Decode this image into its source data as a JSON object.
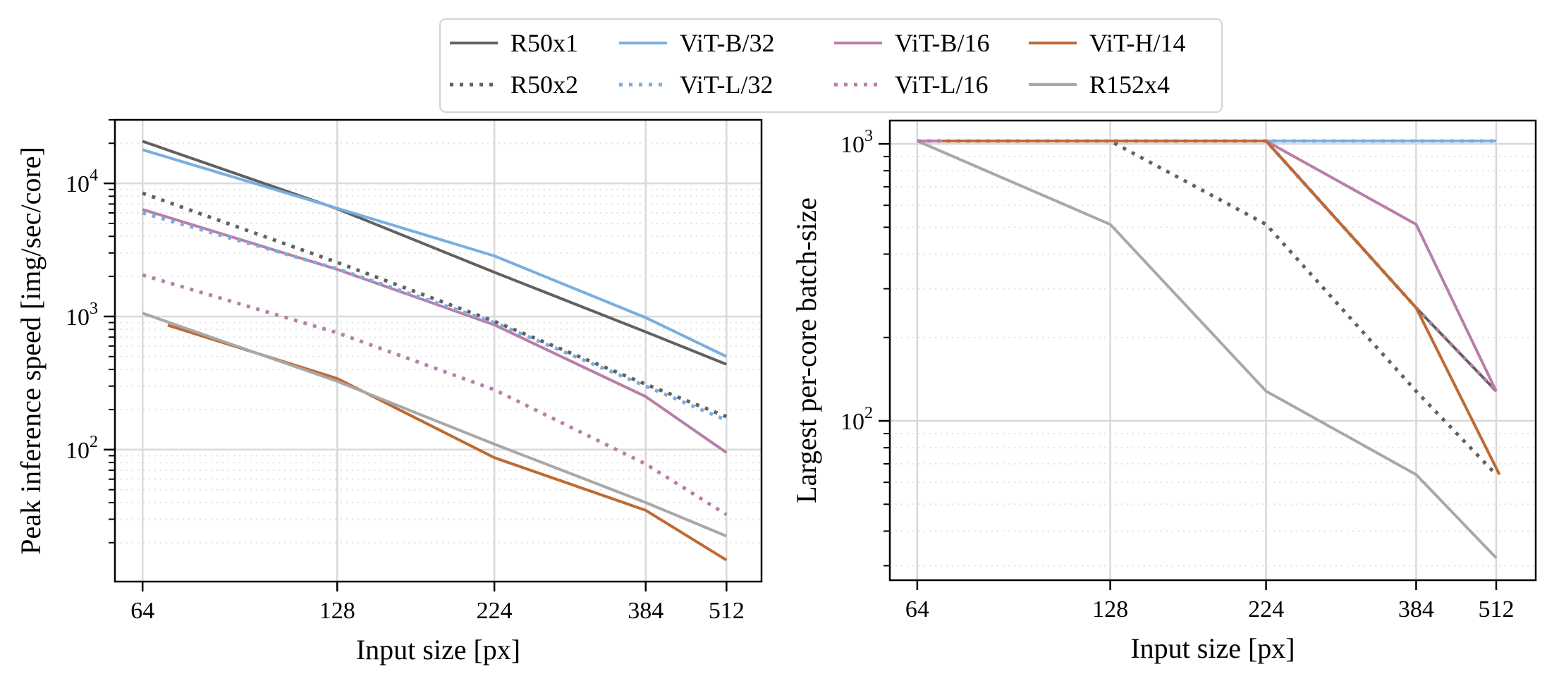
{
  "legend": {
    "placement": "top-center",
    "ncols": 4,
    "entries": [
      {
        "label": "R50x1",
        "color": "#616161",
        "style": "solid"
      },
      {
        "label": "ViT-B/32",
        "color": "#7aaee0",
        "style": "solid"
      },
      {
        "label": "ViT-B/16",
        "color": "#b97ea8",
        "style": "solid"
      },
      {
        "label": "ViT-H/14",
        "color": "#bf6a34",
        "style": "solid"
      },
      {
        "label": "R50x2",
        "color": "#616161",
        "style": "dotted"
      },
      {
        "label": "ViT-L/32",
        "color": "#7aaee0",
        "style": "dotted"
      },
      {
        "label": "ViT-L/16",
        "color": "#b97ea8",
        "style": "dotted"
      },
      {
        "label": "R152x4",
        "color": "#a8a8a8",
        "style": "solid"
      }
    ]
  },
  "chart_data": [
    {
      "type": "line",
      "title": "",
      "xlabel": "Input size [px]",
      "ylabel": "Peak inference speed [img/sec/core]",
      "xscale": "log2",
      "yscale": "log10",
      "xlim": [
        58,
        580
      ],
      "ylim": [
        10.2,
        30000
      ],
      "xticks": [
        64,
        128,
        224,
        384,
        512
      ],
      "xtick_labels": [
        "64",
        "128",
        "224",
        "384",
        "512"
      ],
      "yticks": [
        100,
        1000,
        10000
      ],
      "ytick_labels": [
        "10^2",
        "10^3",
        "10^4"
      ],
      "grid": true,
      "series": [
        {
          "name": "R50x1",
          "x": [
            64,
            128,
            224,
            384,
            512
          ],
          "y": [
            20700,
            6450,
            2150,
            766,
            437
          ]
        },
        {
          "name": "ViT-B/32",
          "x": [
            64,
            128,
            224,
            384,
            512
          ],
          "y": [
            17900,
            6500,
            2850,
            980,
            500
          ]
        },
        {
          "name": "ViT-B/16",
          "x": [
            64,
            128,
            224,
            384,
            512
          ],
          "y": [
            6370,
            2260,
            865,
            250,
            95
          ]
        },
        {
          "name": "ViT-H/14",
          "x": [
            70,
            128,
            224,
            384,
            512
          ],
          "y": [
            860,
            342,
            87,
            35,
            14.8
          ]
        },
        {
          "name": "R50x2",
          "x": [
            64,
            128,
            224,
            384,
            512
          ],
          "y": [
            8440,
            2550,
            920,
            310,
            177
          ]
        },
        {
          "name": "ViT-L/32",
          "x": [
            64,
            128,
            224,
            384,
            512
          ],
          "y": [
            6000,
            2280,
            900,
            300,
            166
          ]
        },
        {
          "name": "ViT-L/16",
          "x": [
            64,
            128,
            224,
            384,
            512
          ],
          "y": [
            2050,
            755,
            282,
            78,
            32.5
          ]
        },
        {
          "name": "R152x4",
          "x": [
            64,
            128,
            224,
            384,
            512
          ],
          "y": [
            1060,
            326,
            110,
            40,
            22.4
          ]
        }
      ]
    },
    {
      "type": "line",
      "title": "",
      "xlabel": "Input size [px]",
      "ylabel": "Largest per-core batch-size",
      "xscale": "log2",
      "yscale": "log10",
      "xlim": [
        58,
        590
      ],
      "ylim": [
        26.6,
        1214
      ],
      "xticks": [
        64,
        128,
        224,
        384,
        512
      ],
      "xtick_labels": [
        "64",
        "128",
        "224",
        "384",
        "512"
      ],
      "yticks": [
        100,
        1000
      ],
      "ytick_labels": [
        "10^2",
        "10^3"
      ],
      "grid": true,
      "series": [
        {
          "name": "R152x4",
          "x": [
            64,
            128,
            224,
            384,
            512
          ],
          "y": [
            1024,
            512,
            128,
            64,
            32
          ]
        },
        {
          "name": "R50x2",
          "x": [
            64,
            128,
            224,
            384,
            512
          ],
          "y": [
            1024,
            1024,
            512,
            128,
            64
          ]
        },
        {
          "name": "ViT-L/32",
          "x": [
            64,
            128,
            224,
            384,
            512
          ],
          "y": [
            1024,
            1024,
            1024,
            1024,
            1024
          ]
        },
        {
          "name": "ViT-B/32",
          "x": [
            64,
            128,
            224,
            384,
            512
          ],
          "y": [
            1024,
            1024,
            1024,
            1024,
            1024
          ]
        },
        {
          "name": "R50x1",
          "x": [
            64,
            128,
            224,
            384,
            512
          ],
          "y": [
            1024,
            1024,
            1024,
            256,
            128
          ]
        },
        {
          "name": "ViT-L/16",
          "x": [
            64,
            128,
            224,
            384,
            512
          ],
          "y": [
            1024,
            1024,
            1024,
            256,
            128
          ]
        },
        {
          "name": "ViT-B/16",
          "x": [
            64,
            128,
            224,
            384,
            512
          ],
          "y": [
            1024,
            1024,
            1024,
            512,
            128
          ]
        },
        {
          "name": "ViT-H/14",
          "x": [
            70,
            128,
            224,
            384,
            518
          ],
          "y": [
            1024,
            1024,
            1024,
            256,
            64
          ]
        }
      ]
    }
  ]
}
